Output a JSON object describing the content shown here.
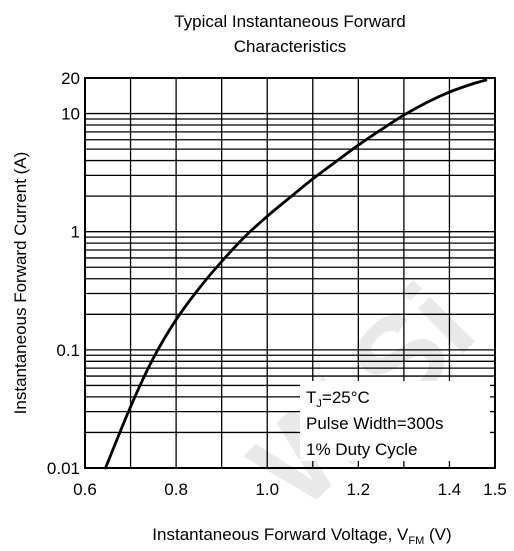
{
  "chart_data": {
    "type": "line",
    "title_line1": "Typical  Instantaneous Forward",
    "title_line2": "Characteristics",
    "xlabel_main": "Instantaneous Forward Voltage, V",
    "xlabel_sub": "FM",
    "xlabel_unit": " (V)",
    "ylabel": "Instantaneous Forward Current (A)",
    "x_scale": "linear",
    "y_scale": "log",
    "xlim": [
      0.6,
      1.5
    ],
    "ylim": [
      0.01,
      20
    ],
    "x_ticks": [
      {
        "value": 0.6,
        "label": "0.6"
      },
      {
        "value": 0.8,
        "label": "0.8"
      },
      {
        "value": 1.0,
        "label": "1.0"
      },
      {
        "value": 1.2,
        "label": "1.2"
      },
      {
        "value": 1.4,
        "label": "1.4"
      },
      {
        "value": 1.5,
        "label": "1.5"
      }
    ],
    "y_ticks": [
      {
        "value": 0.01,
        "label": "0.01"
      },
      {
        "value": 0.1,
        "label": "0.1"
      },
      {
        "value": 1,
        "label": "1"
      },
      {
        "value": 10,
        "label": "10"
      },
      {
        "value": 20,
        "label": "20"
      }
    ],
    "x_grid": [
      0.6,
      0.7,
      0.8,
      0.9,
      1.0,
      1.1,
      1.2,
      1.3,
      1.4,
      1.5
    ],
    "y_grid": [
      0.01,
      0.02,
      0.03,
      0.04,
      0.05,
      0.06,
      0.07,
      0.08,
      0.09,
      0.1,
      0.2,
      0.3,
      0.4,
      0.5,
      0.6,
      0.7,
      0.8,
      0.9,
      1,
      2,
      3,
      4,
      5,
      6,
      7,
      8,
      9,
      10,
      20
    ],
    "grid": true,
    "series": [
      {
        "x": [
          0.645,
          0.7,
          0.75,
          0.8,
          0.85,
          0.9,
          0.95,
          1.0,
          1.05,
          1.1,
          1.15,
          1.2,
          1.25,
          1.3,
          1.35,
          1.4,
          1.45,
          1.48
        ],
        "y": [
          0.01,
          0.033,
          0.085,
          0.18,
          0.33,
          0.56,
          0.9,
          1.35,
          1.95,
          2.8,
          3.9,
          5.4,
          7.3,
          9.7,
          12.4,
          15.2,
          17.8,
          19.2
        ]
      }
    ],
    "annotation": {
      "tj_main": "T",
      "tj_sub": "J",
      "tj_rest": "=25°C",
      "line2": "Pulse Width=300s",
      "line3": "1% Duty Cycle"
    }
  },
  "watermark": {
    "text": "W.Si",
    "color": "#e9e9e9"
  }
}
